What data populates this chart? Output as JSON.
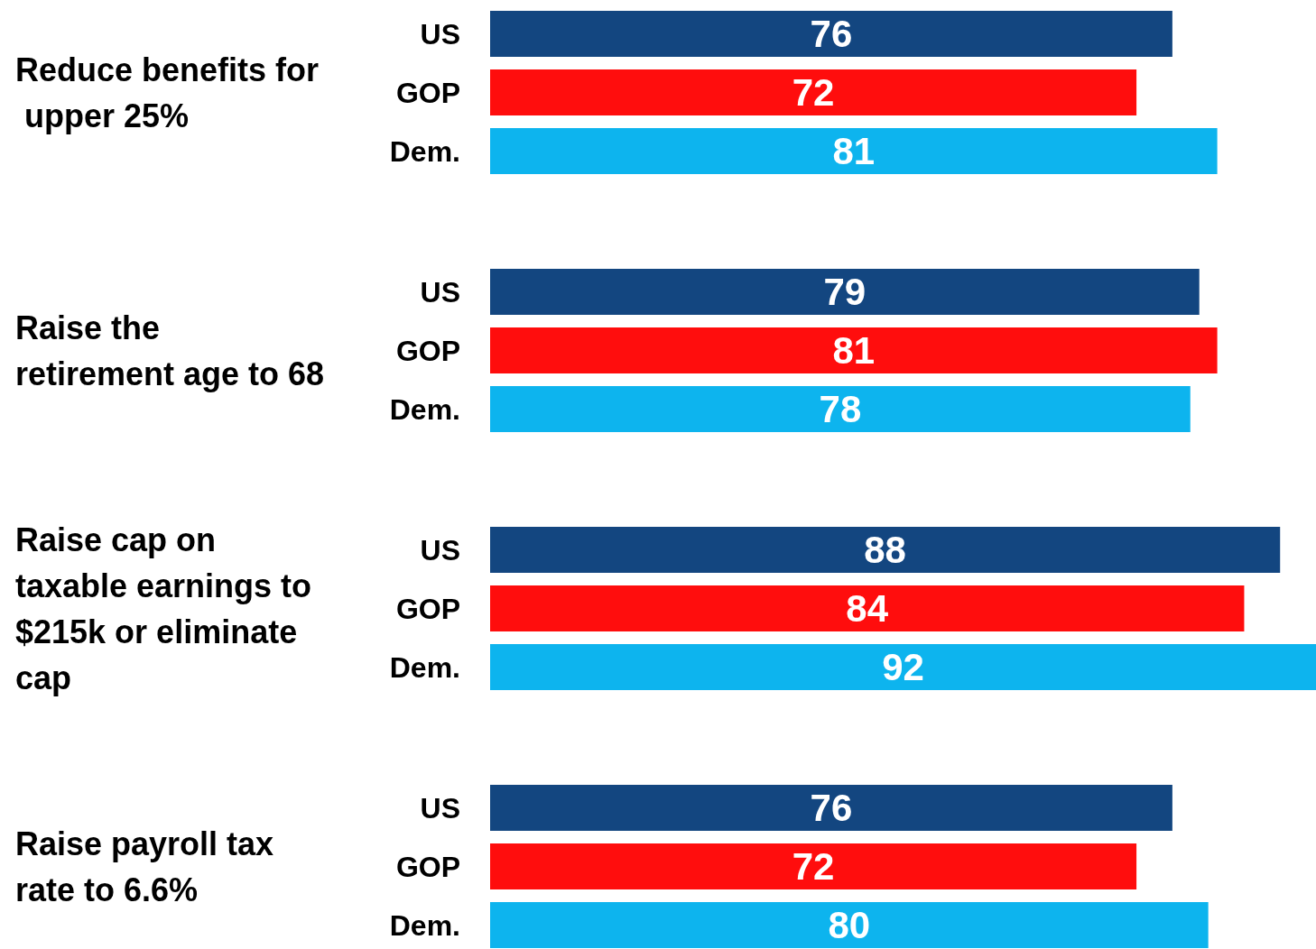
{
  "chart_data": [
    {
      "type": "bar",
      "orientation": "horizontal",
      "title": "Reduce benefits for upper 25%",
      "categories": [
        "US",
        "GOP",
        "Dem."
      ],
      "values": [
        76,
        72,
        81
      ],
      "colors": [
        "#134680",
        "#ff0d0d",
        "#0db4ee"
      ],
      "data_labels": true
    },
    {
      "type": "bar",
      "orientation": "horizontal",
      "title": "Raise the retirement age to 68",
      "categories": [
        "US",
        "GOP",
        "Dem."
      ],
      "values": [
        79,
        81,
        78
      ],
      "colors": [
        "#134680",
        "#ff0d0d",
        "#0db4ee"
      ],
      "data_labels": true
    },
    {
      "type": "bar",
      "orientation": "horizontal",
      "title": "Raise cap on taxable earnings to $215k or eliminate cap",
      "categories": [
        "US",
        "GOP",
        "Dem."
      ],
      "values": [
        88,
        84,
        92
      ],
      "colors": [
        "#134680",
        "#ff0d0d",
        "#0db4ee"
      ],
      "data_labels": true
    },
    {
      "type": "bar",
      "orientation": "horizontal",
      "title": "Raise payroll tax rate to 6.6%",
      "categories": [
        "US",
        "GOP",
        "Dem."
      ],
      "values": [
        76,
        72,
        80
      ],
      "colors": [
        "#134680",
        "#ff0d0d",
        "#0db4ee"
      ],
      "data_labels": true
    }
  ]
}
